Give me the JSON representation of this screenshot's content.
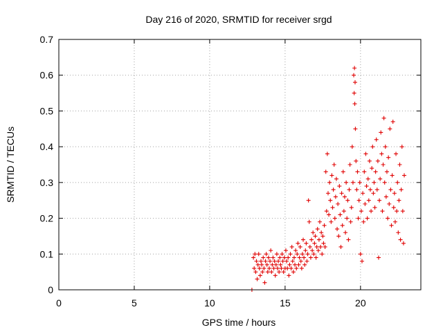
{
  "chart_data": {
    "type": "scatter",
    "title": "Day 216 of 2020, SRMTID for receiver srgd",
    "xlabel": "GPS time / hours",
    "ylabel": "SRMTID / TECUs",
    "xlim": [
      0,
      24
    ],
    "ylim": [
      0,
      0.7
    ],
    "xticks": [
      0,
      5,
      10,
      15,
      20
    ],
    "yticks": [
      0,
      0.1,
      0.2,
      0.3,
      0.4,
      0.5,
      0.6,
      0.7
    ],
    "xtick_labels": [
      "0",
      "5",
      "10",
      "15",
      "20"
    ],
    "ytick_labels": [
      "0",
      "0.1",
      "0.2",
      "0.3",
      "0.4",
      "0.5",
      "0.6",
      "0.7"
    ],
    "grid": true,
    "marker": "+",
    "color": "#e00000",
    "series": [
      {
        "name": "SRMTID",
        "points": [
          [
            12.8,
            0.0
          ],
          [
            12.9,
            0.09
          ],
          [
            12.95,
            0.06
          ],
          [
            13.0,
            0.1
          ],
          [
            13.05,
            0.05
          ],
          [
            13.1,
            0.08
          ],
          [
            13.15,
            0.03
          ],
          [
            13.2,
            0.07
          ],
          [
            13.25,
            0.1
          ],
          [
            13.3,
            0.06
          ],
          [
            13.35,
            0.04
          ],
          [
            13.4,
            0.08
          ],
          [
            13.45,
            0.07
          ],
          [
            13.5,
            0.05
          ],
          [
            13.55,
            0.09
          ],
          [
            13.6,
            0.06
          ],
          [
            13.65,
            0.02
          ],
          [
            13.7,
            0.08
          ],
          [
            13.75,
            0.1
          ],
          [
            13.8,
            0.07
          ],
          [
            13.85,
            0.05
          ],
          [
            13.9,
            0.09
          ],
          [
            13.95,
            0.06
          ],
          [
            14.0,
            0.08
          ],
          [
            14.05,
            0.11
          ],
          [
            14.1,
            0.05
          ],
          [
            14.15,
            0.07
          ],
          [
            14.2,
            0.09
          ],
          [
            14.25,
            0.06
          ],
          [
            14.3,
            0.08
          ],
          [
            14.35,
            0.04
          ],
          [
            14.4,
            0.07
          ],
          [
            14.45,
            0.1
          ],
          [
            14.5,
            0.06
          ],
          [
            14.55,
            0.08
          ],
          [
            14.6,
            0.05
          ],
          [
            14.65,
            0.09
          ],
          [
            14.7,
            0.07
          ],
          [
            14.75,
            0.06
          ],
          [
            14.8,
            0.1
          ],
          [
            14.85,
            0.08
          ],
          [
            14.9,
            0.05
          ],
          [
            14.95,
            0.09
          ],
          [
            15.0,
            0.06
          ],
          [
            15.05,
            0.11
          ],
          [
            15.1,
            0.08
          ],
          [
            15.15,
            0.06
          ],
          [
            15.2,
            0.09
          ],
          [
            15.25,
            0.04
          ],
          [
            15.3,
            0.07
          ],
          [
            15.35,
            0.1
          ],
          [
            15.4,
            0.06
          ],
          [
            15.45,
            0.12
          ],
          [
            15.5,
            0.08
          ],
          [
            15.55,
            0.05
          ],
          [
            15.6,
            0.09
          ],
          [
            15.65,
            0.07
          ],
          [
            15.7,
            0.11
          ],
          [
            15.75,
            0.06
          ],
          [
            15.8,
            0.1
          ],
          [
            15.85,
            0.13
          ],
          [
            15.9,
            0.07
          ],
          [
            15.95,
            0.09
          ],
          [
            16.0,
            0.12
          ],
          [
            16.05,
            0.08
          ],
          [
            16.1,
            0.06
          ],
          [
            16.15,
            0.1
          ],
          [
            16.2,
            0.14
          ],
          [
            16.25,
            0.09
          ],
          [
            16.3,
            0.07
          ],
          [
            16.35,
            0.11
          ],
          [
            16.4,
            0.13
          ],
          [
            16.45,
            0.08
          ],
          [
            16.5,
            0.1
          ],
          [
            16.55,
            0.25
          ],
          [
            16.6,
            0.19
          ],
          [
            16.65,
            0.12
          ],
          [
            16.7,
            0.09
          ],
          [
            16.75,
            0.14
          ],
          [
            16.8,
            0.11
          ],
          [
            16.85,
            0.16
          ],
          [
            16.9,
            0.1
          ],
          [
            16.95,
            0.13
          ],
          [
            17.0,
            0.15
          ],
          [
            17.05,
            0.09
          ],
          [
            17.1,
            0.12
          ],
          [
            17.15,
            0.17
          ],
          [
            17.2,
            0.11
          ],
          [
            17.25,
            0.14
          ],
          [
            17.3,
            0.19
          ],
          [
            17.35,
            0.12
          ],
          [
            17.4,
            0.16
          ],
          [
            17.45,
            0.1
          ],
          [
            17.5,
            0.15
          ],
          [
            17.55,
            0.13
          ],
          [
            17.6,
            0.18
          ],
          [
            17.65,
            0.12
          ],
          [
            17.7,
            0.33
          ],
          [
            17.75,
            0.22
          ],
          [
            17.8,
            0.38
          ],
          [
            17.85,
            0.27
          ],
          [
            17.9,
            0.21
          ],
          [
            17.95,
            0.3
          ],
          [
            18.0,
            0.25
          ],
          [
            18.05,
            0.19
          ],
          [
            18.1,
            0.32
          ],
          [
            18.15,
            0.23
          ],
          [
            18.2,
            0.28
          ],
          [
            18.25,
            0.35
          ],
          [
            18.3,
            0.2
          ],
          [
            18.35,
            0.26
          ],
          [
            18.4,
            0.31
          ],
          [
            18.45,
            0.17
          ],
          [
            18.5,
            0.24
          ],
          [
            18.55,
            0.15
          ],
          [
            18.6,
            0.29
          ],
          [
            18.65,
            0.21
          ],
          [
            18.7,
            0.12
          ],
          [
            18.75,
            0.27
          ],
          [
            18.8,
            0.18
          ],
          [
            18.85,
            0.33
          ],
          [
            18.9,
            0.22
          ],
          [
            18.95,
            0.26
          ],
          [
            19.0,
            0.16
          ],
          [
            19.05,
            0.3
          ],
          [
            19.1,
            0.2
          ],
          [
            19.15,
            0.25
          ],
          [
            19.2,
            0.14
          ],
          [
            19.25,
            0.28
          ],
          [
            19.3,
            0.35
          ],
          [
            19.35,
            0.19
          ],
          [
            19.4,
            0.23
          ],
          [
            19.45,
            0.4
          ],
          [
            19.5,
            0.3
          ],
          [
            19.55,
            0.6
          ],
          [
            19.58,
            0.55
          ],
          [
            19.6,
            0.62
          ],
          [
            19.62,
            0.52
          ],
          [
            19.64,
            0.58
          ],
          [
            19.66,
            0.45
          ],
          [
            19.7,
            0.36
          ],
          [
            19.75,
            0.28
          ],
          [
            19.8,
            0.33
          ],
          [
            19.85,
            0.2
          ],
          [
            19.9,
            0.25
          ],
          [
            19.95,
            0.3
          ],
          [
            20.0,
            0.1
          ],
          [
            20.05,
            0.22
          ],
          [
            20.1,
            0.08
          ],
          [
            20.15,
            0.27
          ],
          [
            20.2,
            0.19
          ],
          [
            20.25,
            0.33
          ],
          [
            20.3,
            0.24
          ],
          [
            20.35,
            0.38
          ],
          [
            20.4,
            0.29
          ],
          [
            20.45,
            0.2
          ],
          [
            20.5,
            0.31
          ],
          [
            20.55,
            0.25
          ],
          [
            20.6,
            0.36
          ],
          [
            20.65,
            0.28
          ],
          [
            20.7,
            0.22
          ],
          [
            20.75,
            0.34
          ],
          [
            20.8,
            0.4
          ],
          [
            20.85,
            0.27
          ],
          [
            20.9,
            0.3
          ],
          [
            20.95,
            0.23
          ],
          [
            21.0,
            0.33
          ],
          [
            21.05,
            0.42
          ],
          [
            21.1,
            0.28
          ],
          [
            21.15,
            0.36
          ],
          [
            21.2,
            0.09
          ],
          [
            21.25,
            0.25
          ],
          [
            21.3,
            0.31
          ],
          [
            21.35,
            0.44
          ],
          [
            21.4,
            0.38
          ],
          [
            21.45,
            0.22
          ],
          [
            21.5,
            0.35
          ],
          [
            21.55,
            0.48
          ],
          [
            21.6,
            0.3
          ],
          [
            21.65,
            0.4
          ],
          [
            21.7,
            0.26
          ],
          [
            21.75,
            0.33
          ],
          [
            21.8,
            0.2
          ],
          [
            21.85,
            0.37
          ],
          [
            21.9,
            0.24
          ],
          [
            21.95,
            0.45
          ],
          [
            22.0,
            0.28
          ],
          [
            22.05,
            0.18
          ],
          [
            22.1,
            0.32
          ],
          [
            22.15,
            0.47
          ],
          [
            22.2,
            0.23
          ],
          [
            22.25,
            0.27
          ],
          [
            22.3,
            0.19
          ],
          [
            22.35,
            0.38
          ],
          [
            22.4,
            0.22
          ],
          [
            22.45,
            0.3
          ],
          [
            22.5,
            0.16
          ],
          [
            22.55,
            0.25
          ],
          [
            22.6,
            0.35
          ],
          [
            22.65,
            0.14
          ],
          [
            22.7,
            0.28
          ],
          [
            22.75,
            0.4
          ],
          [
            22.8,
            0.22
          ],
          [
            22.85,
            0.13
          ],
          [
            22.9,
            0.32
          ]
        ]
      }
    ]
  }
}
